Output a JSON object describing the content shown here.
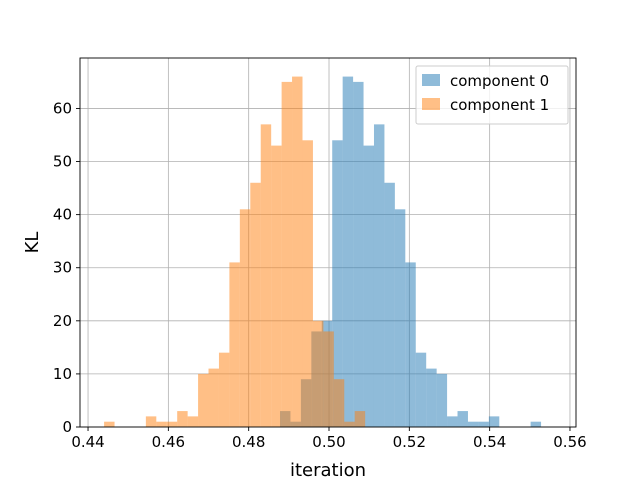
{
  "chart_data": {
    "type": "histogram",
    "xlabel": "iteration",
    "ylabel": "KL",
    "xlim": [
      0.438,
      0.5615
    ],
    "ylim": [
      0,
      69.5
    ],
    "xticks": [
      0.44,
      0.46,
      0.48,
      0.5,
      0.52,
      0.54,
      0.56
    ],
    "xtick_labels": [
      "0.44",
      "0.46",
      "0.48",
      "0.50",
      "0.52",
      "0.54",
      "0.56"
    ],
    "yticks": [
      0,
      10,
      20,
      30,
      40,
      50,
      60
    ],
    "ytick_labels": [
      "0",
      "10",
      "20",
      "30",
      "40",
      "50",
      "60"
    ],
    "grid": true,
    "legend_position": "top-right",
    "bin_width": 0.0026,
    "series": [
      {
        "name": "component 0",
        "color": "#1f77b4",
        "alpha": 0.5,
        "bins": [
          [
            0.4878,
            3
          ],
          [
            0.4904,
            1
          ],
          [
            0.493,
            9
          ],
          [
            0.4956,
            18
          ],
          [
            0.4982,
            20
          ],
          [
            0.5008,
            54
          ],
          [
            0.5034,
            66
          ],
          [
            0.506,
            65
          ],
          [
            0.5086,
            53
          ],
          [
            0.5112,
            57
          ],
          [
            0.5138,
            46
          ],
          [
            0.5164,
            41
          ],
          [
            0.519,
            31
          ],
          [
            0.5216,
            14
          ],
          [
            0.5242,
            11
          ],
          [
            0.5268,
            10
          ],
          [
            0.5294,
            2
          ],
          [
            0.532,
            3
          ],
          [
            0.5346,
            1
          ],
          [
            0.5372,
            1
          ],
          [
            0.5398,
            2
          ],
          [
            0.5502,
            1
          ]
        ]
      },
      {
        "name": "component 1",
        "color": "#ff7f0e",
        "alpha": 0.5,
        "bins": [
          [
            0.444,
            1
          ],
          [
            0.4544,
            2
          ],
          [
            0.457,
            1
          ],
          [
            0.4596,
            1
          ],
          [
            0.4622,
            3
          ],
          [
            0.4648,
            2
          ],
          [
            0.4674,
            10
          ],
          [
            0.47,
            11
          ],
          [
            0.4726,
            14
          ],
          [
            0.4752,
            31
          ],
          [
            0.4778,
            41
          ],
          [
            0.4804,
            46
          ],
          [
            0.483,
            57
          ],
          [
            0.4856,
            53
          ],
          [
            0.4882,
            65
          ],
          [
            0.4908,
            66
          ],
          [
            0.4934,
            54
          ],
          [
            0.496,
            20
          ],
          [
            0.4986,
            18
          ],
          [
            0.5012,
            9
          ],
          [
            0.5038,
            1
          ],
          [
            0.5064,
            3
          ]
        ]
      }
    ]
  }
}
